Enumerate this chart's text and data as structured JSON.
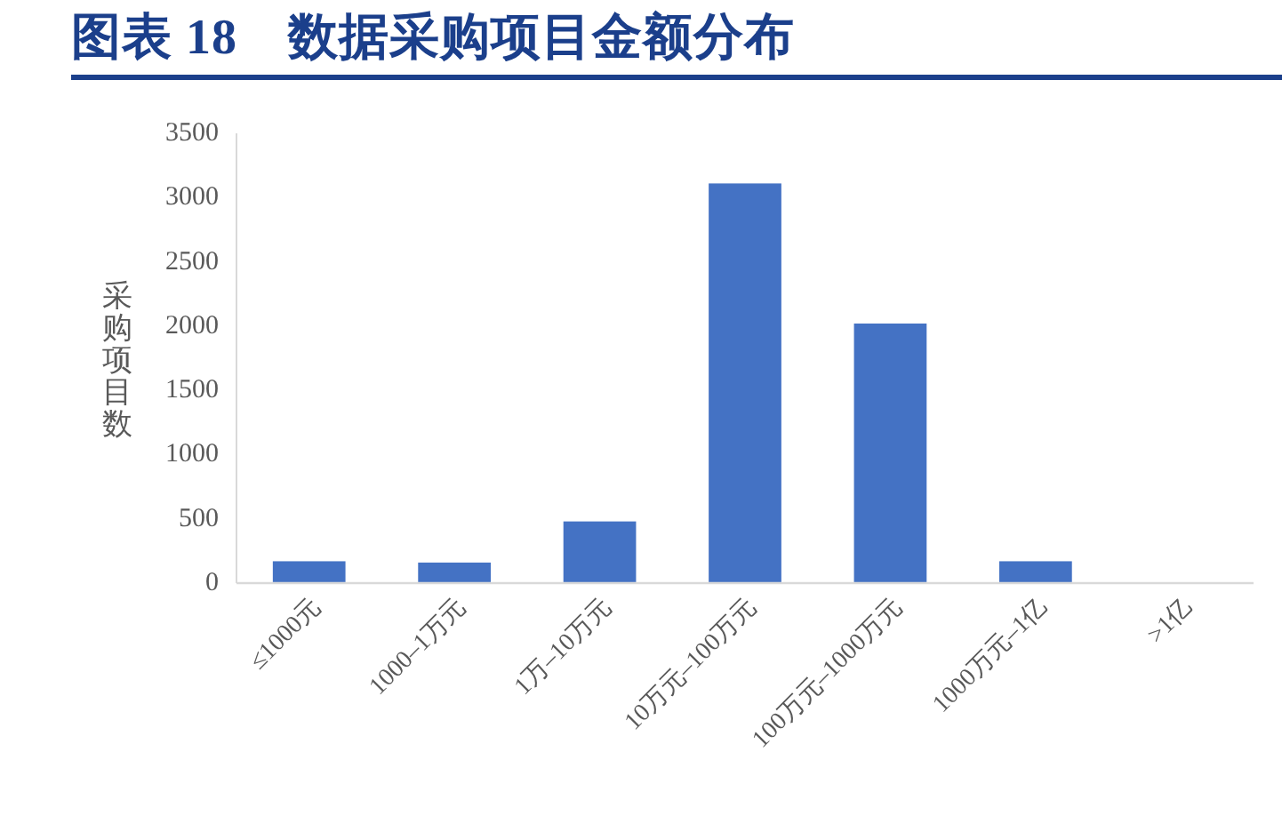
{
  "chart_data": {
    "type": "bar",
    "title": "图表 18　数据采购项目金额分布",
    "ylabel": "采购项目数",
    "categories": [
      "≤1000元",
      "1000–1万元",
      "1万–10万元",
      "10万元–100万元",
      "100万元–1000万元",
      "1000万元–1亿",
      ">1亿"
    ],
    "values": [
      170,
      160,
      480,
      3110,
      2020,
      170,
      0
    ],
    "color": "#4472c4",
    "ylim": [
      0,
      3500
    ],
    "yticks": [
      0,
      500,
      1000,
      1500,
      2000,
      2500,
      3000,
      3500
    ]
  }
}
